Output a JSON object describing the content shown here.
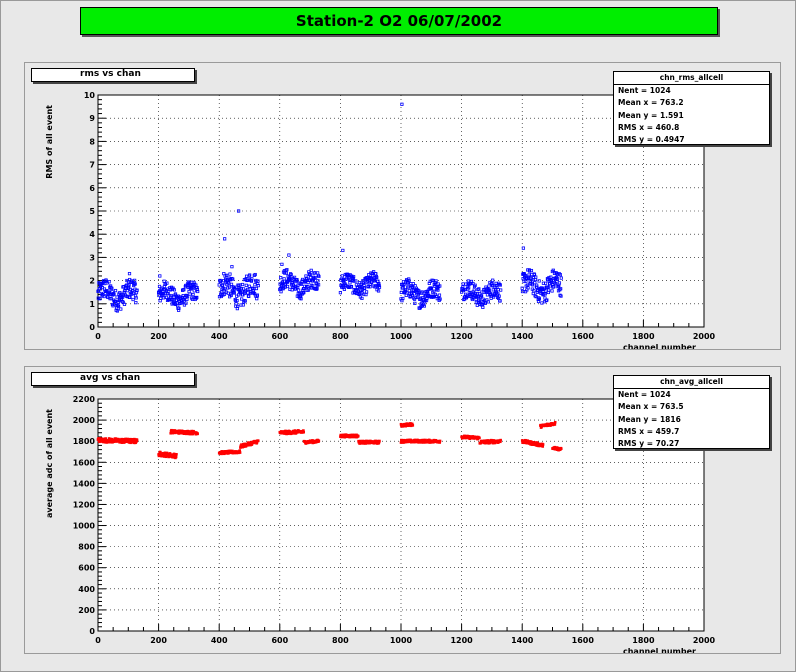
{
  "title": "Station-2 O2 06/07/2002",
  "colors": {
    "title_bg": "#00ee00",
    "rms_marker": "#0000ff",
    "avg_marker": "#ff0000"
  },
  "top_panel": {
    "label": "rms vs chan",
    "stats": {
      "name": "chn_rms_allcell",
      "rows": [
        "Nent = 1024",
        "Mean x = 763.2",
        "Mean y = 1.591",
        "RMS x = 460.8",
        "RMS y = 0.4947"
      ]
    }
  },
  "bottom_panel": {
    "label": "avg vs chan",
    "stats": {
      "name": "chn_avg_allcell",
      "rows": [
        "Nent = 1024",
        "Mean x = 763.5",
        "Mean y = 1816",
        "RMS x = 459.7",
        "RMS y = 70.27"
      ]
    }
  },
  "chart_data": [
    {
      "type": "scatter",
      "title": "rms vs chan",
      "xlabel": "channel number",
      "ylabel": "RMS of all event",
      "xlim": [
        0,
        2000
      ],
      "ylim": [
        0,
        10
      ],
      "xticks": [
        "0",
        "200",
        "400",
        "600",
        "800",
        "1000",
        "1200",
        "1400",
        "1600",
        "1800",
        "2000"
      ],
      "yticks": [
        "0",
        "1",
        "2",
        "3",
        "4",
        "5",
        "6",
        "7",
        "8",
        "9",
        "10"
      ],
      "grid": true,
      "marker_color": "#0000ff",
      "series": [
        {
          "clusters": [
            {
              "x0": 0,
              "x1": 130,
              "ymin": 0.8,
              "ymax": 2.0
            },
            {
              "x0": 200,
              "x1": 330,
              "ymin": 0.8,
              "ymax": 1.9
            },
            {
              "x0": 400,
              "x1": 530,
              "ymin": 0.9,
              "ymax": 2.3
            },
            {
              "x0": 600,
              "x1": 730,
              "ymin": 1.3,
              "ymax": 2.4
            },
            {
              "x0": 800,
              "x1": 930,
              "ymin": 1.3,
              "ymax": 2.3
            },
            {
              "x0": 1000,
              "x1": 1130,
              "ymin": 0.9,
              "ymax": 2.0
            },
            {
              "x0": 1200,
              "x1": 1330,
              "ymin": 0.9,
              "ymax": 2.0
            },
            {
              "x0": 1400,
              "x1": 1530,
              "ymin": 1.1,
              "ymax": 2.4
            }
          ],
          "outliers": [
            [
              1003,
              9.6
            ],
            [
              464,
              5.0
            ],
            [
              418,
              3.8
            ],
            [
              1404,
              3.4
            ],
            [
              808,
              3.3
            ],
            [
              630,
              3.1
            ],
            [
              607,
              2.7
            ],
            [
              104,
              2.3
            ],
            [
              204,
              2.2
            ],
            [
              442,
              2.6
            ]
          ]
        }
      ]
    },
    {
      "type": "scatter",
      "title": "avg vs chan",
      "xlabel": "channel number",
      "ylabel": "average adc of all event",
      "xlim": [
        0,
        2000
      ],
      "ylim": [
        0,
        2200
      ],
      "xticks": [
        "0",
        "200",
        "400",
        "600",
        "800",
        "1000",
        "1200",
        "1400",
        "1600",
        "1800",
        "2000"
      ],
      "yticks": [
        "0",
        "200",
        "400",
        "600",
        "800",
        "1000",
        "1200",
        "1400",
        "1600",
        "1800",
        "2000",
        "2200"
      ],
      "grid": true,
      "marker_color": "#ff0000",
      "series": [
        {
          "segments": [
            {
              "x0": 0,
              "x1": 130,
              "y0": 1810,
              "y1": 1800,
              "spread": 40
            },
            {
              "x0": 200,
              "x1": 260,
              "y0": 1680,
              "y1": 1660,
              "spread": 40
            },
            {
              "x0": 240,
              "x1": 330,
              "y0": 1890,
              "y1": 1880,
              "spread": 30
            },
            {
              "x0": 400,
              "x1": 470,
              "y0": 1690,
              "y1": 1700,
              "spread": 25
            },
            {
              "x0": 470,
              "x1": 530,
              "y0": 1750,
              "y1": 1800,
              "spread": 30
            },
            {
              "x0": 600,
              "x1": 680,
              "y0": 1880,
              "y1": 1890,
              "spread": 30
            },
            {
              "x0": 680,
              "x1": 730,
              "y0": 1790,
              "y1": 1800,
              "spread": 25
            },
            {
              "x0": 800,
              "x1": 860,
              "y0": 1850,
              "y1": 1850,
              "spread": 25
            },
            {
              "x0": 860,
              "x1": 930,
              "y0": 1790,
              "y1": 1790,
              "spread": 25
            },
            {
              "x0": 1000,
              "x1": 1040,
              "y0": 1950,
              "y1": 1960,
              "spread": 25
            },
            {
              "x0": 1000,
              "x1": 1130,
              "y0": 1800,
              "y1": 1800,
              "spread": 25
            },
            {
              "x0": 1200,
              "x1": 1260,
              "y0": 1840,
              "y1": 1830,
              "spread": 25
            },
            {
              "x0": 1260,
              "x1": 1330,
              "y0": 1790,
              "y1": 1800,
              "spread": 30
            },
            {
              "x0": 1400,
              "x1": 1470,
              "y0": 1800,
              "y1": 1760,
              "spread": 30
            },
            {
              "x0": 1460,
              "x1": 1510,
              "y0": 1940,
              "y1": 1970,
              "spread": 25
            },
            {
              "x0": 1500,
              "x1": 1530,
              "y0": 1740,
              "y1": 1720,
              "spread": 25
            }
          ]
        }
      ]
    }
  ]
}
